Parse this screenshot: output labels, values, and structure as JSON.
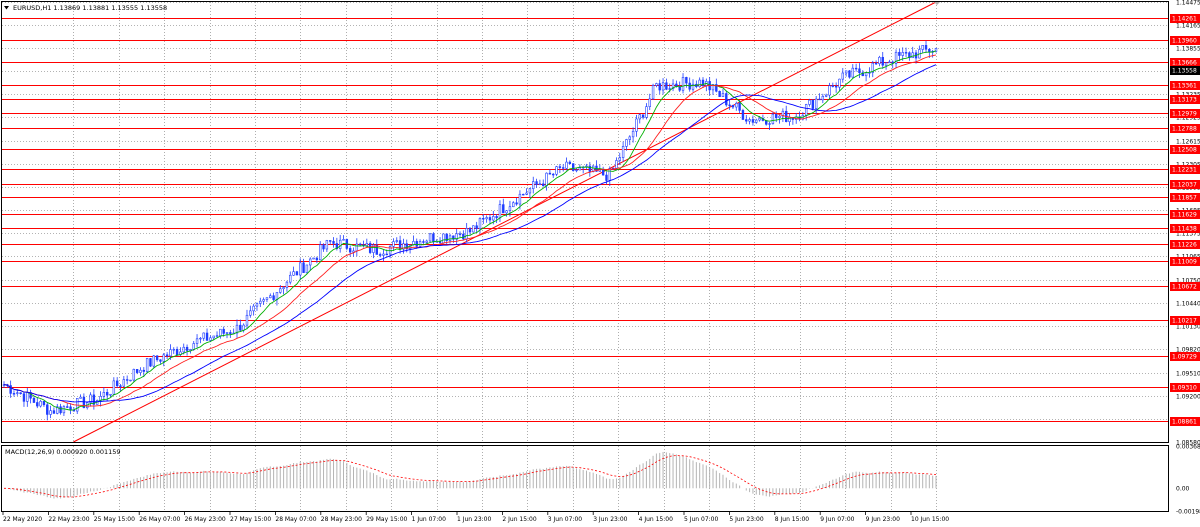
{
  "header": {
    "symbol_line": "EURUSD,H1  1.13869 1.13881 1.13555 1.13558"
  },
  "macd_header": "MACD(12,26,9) 0.000920 0.001159",
  "colors": {
    "background": "#ffffff",
    "grid": "#9a9a9a",
    "level": "#ff0000",
    "price_label_bg": "#ff0000",
    "current_label_bg": "#000000",
    "candle": "#1e3cff",
    "ma_fast": "#00b000",
    "ma_mid": "#ff2020",
    "ma_slow": "#0000ff",
    "macd_hist": "#b4b4b4",
    "macd_signal": "#ff0000"
  },
  "chart_data": [
    {
      "type": "candlestick",
      "title": "EURUSD,H1",
      "ylim": [
        1.0858,
        1.1447
      ],
      "y_ticks": [
        "1.14475",
        "1.14165",
        "1.13855",
        "1.13545",
        "1.13235",
        "1.12925",
        "1.12615",
        "1.12305",
        "1.11995",
        "1.11685",
        "1.11375",
        "1.11065",
        "1.10750",
        "1.10440",
        "1.10130",
        "1.09820",
        "1.09510",
        "1.09200",
        "1.08890",
        "1.08580"
      ],
      "x_labels": [
        "22 May 2020",
        "22 May 23:00",
        "25 May 15:00",
        "26 May 07:00",
        "26 May 23:00",
        "27 May 15:00",
        "28 May 07:00",
        "28 May 23:00",
        "29 May 15:00",
        "1 Jun 07:00",
        "1 Jun 23:00",
        "2 Jun 15:00",
        "3 Jun 07:00",
        "3 Jun 23:00",
        "4 Jun 15:00",
        "5 Jun 07:00",
        "5 Jun 23:00",
        "8 Jun 15:00",
        "9 Jun 07:00",
        "9 Jun 23:00",
        "10 Jun 15:00"
      ],
      "ohlc_summary": {
        "open": 1.13869,
        "high": 1.13881,
        "low": 1.13555,
        "close": 1.13558
      },
      "current_price": "1.13558",
      "horizontal_levels": [
        "1.14261",
        "1.13960",
        "1.13666",
        "1.13361",
        "1.13173",
        "1.12979",
        "1.12788",
        "1.12508",
        "1.12231",
        "1.12037",
        "1.11857",
        "1.11629",
        "1.11438",
        "1.11226",
        "1.11009",
        "1.10672",
        "1.10217",
        "1.09729",
        "1.09310",
        "1.08861"
      ],
      "trendline": {
        "from": {
          "x": "22 May 23:00",
          "y": 1.0858
        },
        "to": {
          "x": "10 Jun 15:00",
          "y": 1.1447
        }
      },
      "price_path": [
        [
          "22 May 2020",
          1.0935
        ],
        [
          "22 May 23:00",
          1.09
        ],
        [
          "25 May 15:00",
          1.0915
        ],
        [
          "26 May 07:00",
          1.096
        ],
        [
          "26 May 23:00",
          1.099
        ],
        [
          "27 May 15:00",
          1.101
        ],
        [
          "28 May 07:00",
          1.107
        ],
        [
          "28 May 23:00",
          1.1125
        ],
        [
          "29 May 15:00",
          1.1115
        ],
        [
          "1 Jun 07:00",
          1.113
        ],
        [
          "1 Jun 23:00",
          1.114
        ],
        [
          "2 Jun 15:00",
          1.1185
        ],
        [
          "3 Jun 07:00",
          1.1225
        ],
        [
          "3 Jun 23:00",
          1.1215
        ],
        [
          "4 Jun 15:00",
          1.1335
        ],
        [
          "5 Jun 07:00",
          1.134
        ],
        [
          "5 Jun 23:00",
          1.129
        ],
        [
          "8 Jun 15:00",
          1.1295
        ],
        [
          "9 Jun 07:00",
          1.1345
        ],
        [
          "9 Jun 23:00",
          1.137
        ],
        [
          "10 Jun 15:00",
          1.1385
        ]
      ]
    },
    {
      "type": "bar",
      "title": "MACD(12,26,9)",
      "ylim": [
        -0.00198,
        0.00368
      ],
      "y_ticks": [
        "0.003685",
        "0.00",
        "-0.00198"
      ],
      "main": 0.00092,
      "signal": 0.001159
    }
  ]
}
